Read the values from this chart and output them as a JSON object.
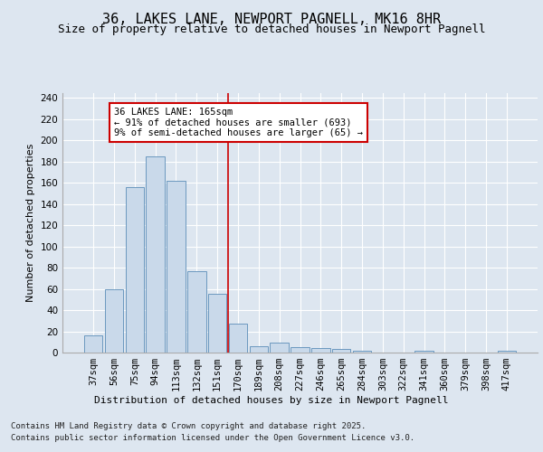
{
  "title_line1": "36, LAKES LANE, NEWPORT PAGNELL, MK16 8HR",
  "title_line2": "Size of property relative to detached houses in Newport Pagnell",
  "xlabel": "Distribution of detached houses by size in Newport Pagnell",
  "ylabel": "Number of detached properties",
  "footnote1": "Contains HM Land Registry data © Crown copyright and database right 2025.",
  "footnote2": "Contains public sector information licensed under the Open Government Licence v3.0.",
  "categories": [
    "37sqm",
    "56sqm",
    "75sqm",
    "94sqm",
    "113sqm",
    "132sqm",
    "151sqm",
    "170sqm",
    "189sqm",
    "208sqm",
    "227sqm",
    "246sqm",
    "265sqm",
    "284sqm",
    "303sqm",
    "322sqm",
    "341sqm",
    "360sqm",
    "379sqm",
    "398sqm",
    "417sqm"
  ],
  "values": [
    16,
    60,
    156,
    185,
    162,
    77,
    55,
    27,
    6,
    9,
    5,
    4,
    3,
    2,
    0,
    0,
    2,
    0,
    0,
    0,
    2
  ],
  "bar_color": "#c9d9ea",
  "bar_edge_color": "#5b8db8",
  "vline_color": "#cc0000",
  "annotation_text": "36 LAKES LANE: 165sqm\n← 91% of detached houses are smaller (693)\n9% of semi-detached houses are larger (65) →",
  "annotation_box_edgecolor": "#cc0000",
  "background_color": "#dde6f0",
  "plot_background_color": "#dde6f0",
  "ylim": [
    0,
    245
  ],
  "yticks": [
    0,
    20,
    40,
    60,
    80,
    100,
    120,
    140,
    160,
    180,
    200,
    220,
    240
  ],
  "grid_color": "#ffffff",
  "title_fontsize": 11,
  "subtitle_fontsize": 9,
  "axis_label_fontsize": 8,
  "tick_fontsize": 7.5,
  "annotation_fontsize": 7.5,
  "footnote_fontsize": 6.5
}
